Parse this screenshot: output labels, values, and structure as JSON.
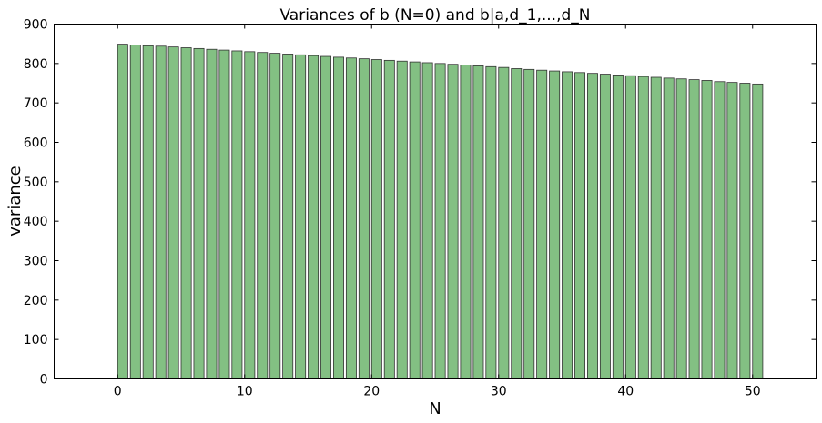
{
  "chart_data": {
    "type": "bar",
    "title": "Variances of b (N=0) and b|a,d_1,...,d_N",
    "xlabel": "N",
    "ylabel": "variance",
    "xlim": [
      -5,
      55
    ],
    "ylim": [
      0,
      900
    ],
    "xticks": [
      "0",
      "10",
      "20",
      "30",
      "40",
      "50"
    ],
    "yticks": [
      "0",
      "100",
      "200",
      "300",
      "400",
      "500",
      "600",
      "700",
      "800",
      "900"
    ],
    "bar_color": "#83c083",
    "bar_edge_color": "#333333",
    "grid": false,
    "x": [
      0,
      1,
      2,
      3,
      4,
      5,
      6,
      7,
      8,
      9,
      10,
      11,
      12,
      13,
      14,
      15,
      16,
      17,
      18,
      19,
      20,
      21,
      22,
      23,
      24,
      25,
      26,
      27,
      28,
      29,
      30,
      31,
      32,
      33,
      34,
      35,
      36,
      37,
      38,
      39,
      40,
      41,
      42,
      43,
      44,
      45,
      46,
      47,
      48,
      49,
      50
    ],
    "values": [
      849,
      847,
      845,
      844,
      842,
      840,
      838,
      836,
      834,
      832,
      830,
      828,
      826,
      824,
      822,
      820,
      818,
      816,
      814,
      812,
      810,
      808,
      806,
      804,
      802,
      800,
      798,
      796,
      794,
      792,
      790,
      787,
      785,
      783,
      781,
      779,
      777,
      775,
      773,
      771,
      769,
      767,
      765,
      763,
      761,
      759,
      757,
      754,
      752,
      750,
      748
    ]
  }
}
